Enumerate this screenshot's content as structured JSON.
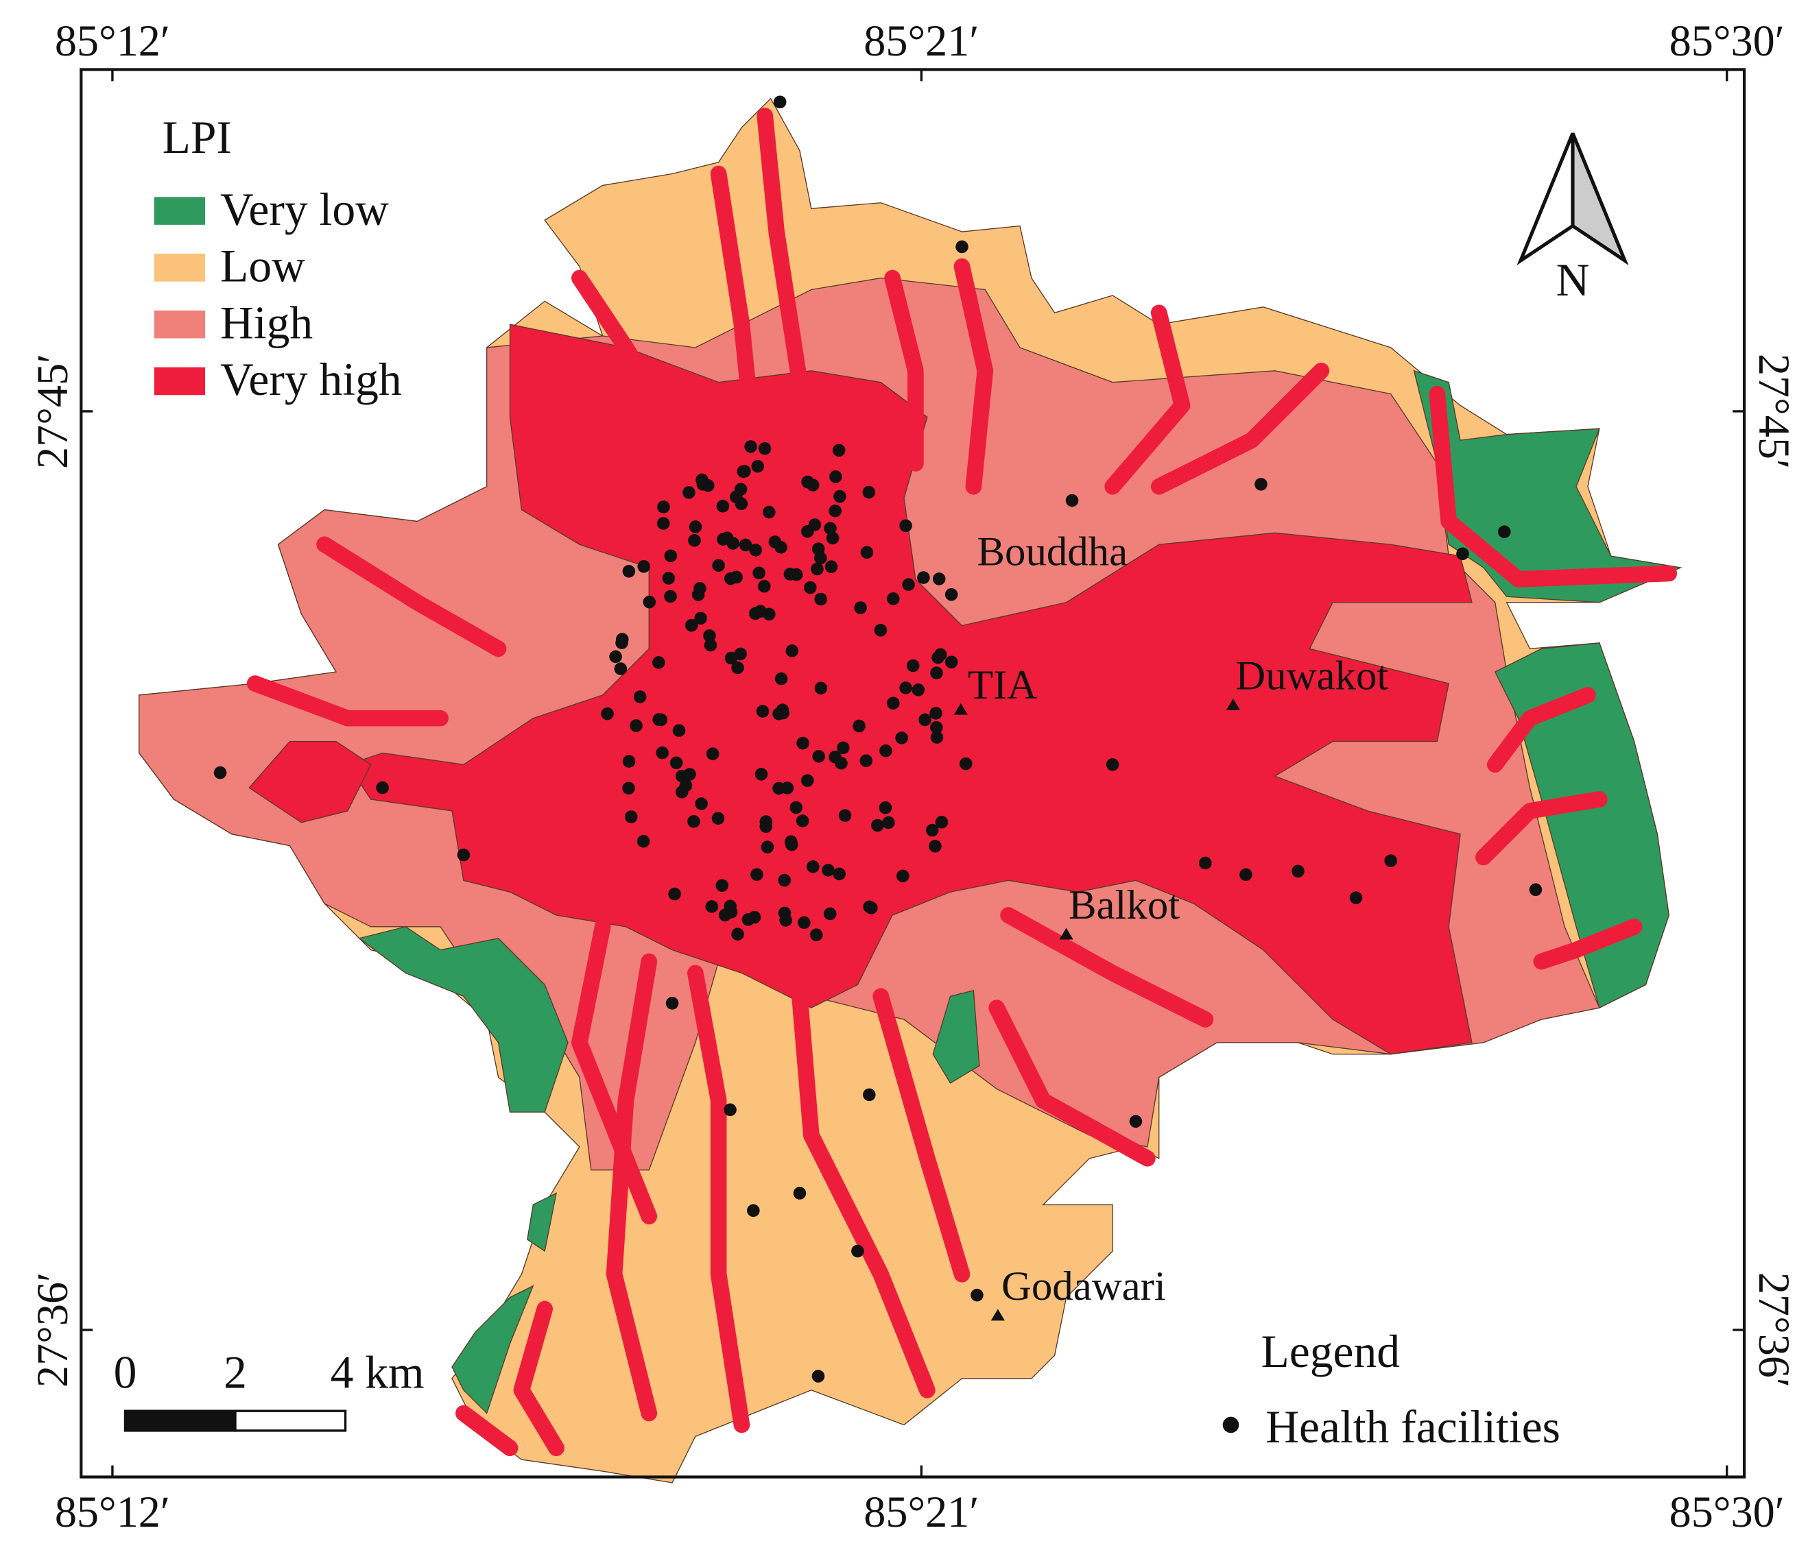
{
  "frame_labels": {
    "top": [
      "85°12′",
      "85°21′",
      "85°30′"
    ],
    "bottom": [
      "85°12′",
      "85°21′",
      "85°30′"
    ],
    "left": [
      "27°45′",
      "27°36′"
    ],
    "right": [
      "27°45′",
      "27°36′"
    ]
  },
  "lpi_legend": {
    "title": "LPI",
    "items": [
      {
        "label": "Very low",
        "color": "#2e9a5e"
      },
      {
        "label": "Low",
        "color": "#fbc27b"
      },
      {
        "label": "High",
        "color": "#f0807a"
      },
      {
        "label": "Very high",
        "color": "#ee1d3c"
      }
    ]
  },
  "places": [
    "Bouddha",
    "TIA",
    "Duwakot",
    "Balkot",
    "Godawari"
  ],
  "north_arrow": "N",
  "scale_bar": [
    "0",
    "2",
    "4 km"
  ],
  "legend": {
    "title": "Legend",
    "items": [
      "Health facilities"
    ]
  }
}
